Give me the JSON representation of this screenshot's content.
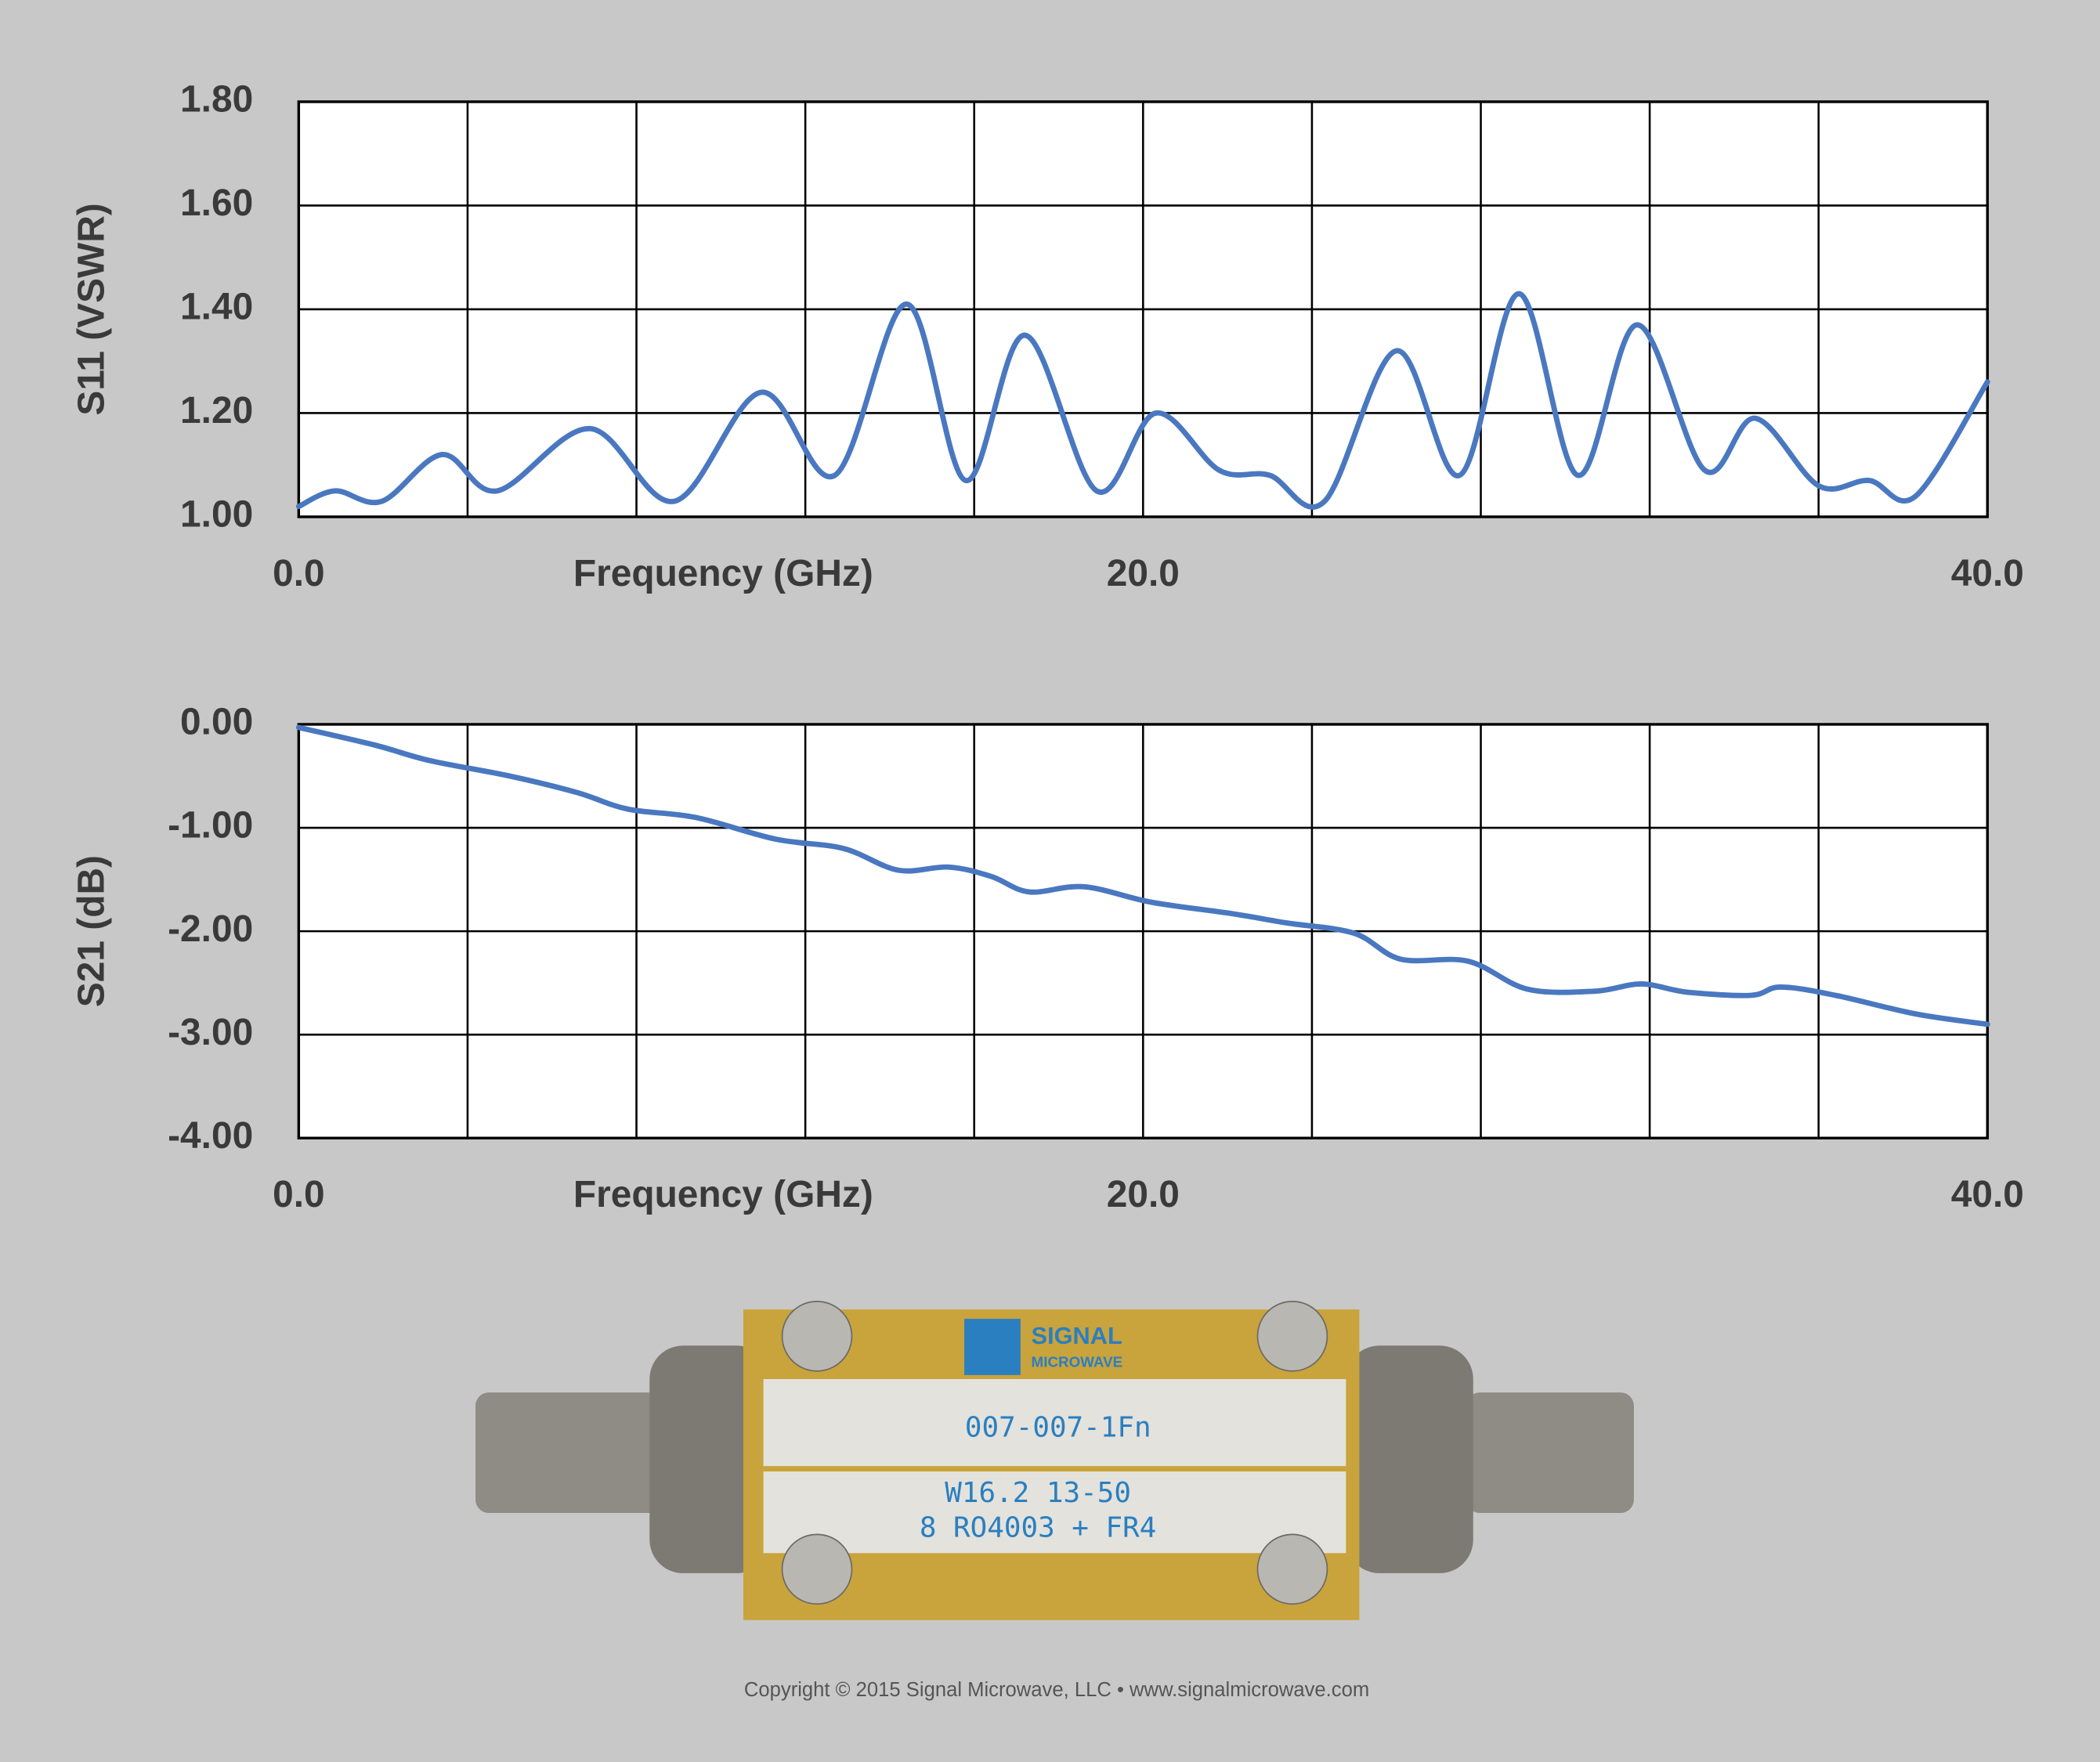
{
  "chart_data": [
    {
      "type": "line",
      "y_label": "S11 (VSWR)",
      "x_label": "Frequency (GHz)",
      "xlim": [
        0,
        40
      ],
      "ylim": [
        1.0,
        1.8
      ],
      "xticks": [
        {
          "value": 0,
          "label": "0.0"
        },
        {
          "value": 20,
          "label": "20.0"
        },
        {
          "value": 40,
          "label": "40.0"
        }
      ],
      "xgrid": [
        0,
        4,
        8,
        12,
        16,
        20,
        24,
        28,
        32,
        36,
        40
      ],
      "yticks": [
        {
          "value": 1.0,
          "label": "1.00"
        },
        {
          "value": 1.2,
          "label": "1.20"
        },
        {
          "value": 1.4,
          "label": "1.40"
        },
        {
          "value": 1.6,
          "label": "1.60"
        },
        {
          "value": 1.8,
          "label": "1.80"
        }
      ],
      "grid": true,
      "series": [
        {
          "color": "#4a78c0",
          "x": [
            0,
            0.86,
            1.97,
            3.4,
            4.7,
            6.9,
            8.9,
            10.95,
            12.7,
            14.4,
            15.8,
            17.2,
            18.9,
            20.3,
            21.8,
            23,
            24.3,
            26,
            27.5,
            28.9,
            30.3,
            31.7,
            33.3,
            34.5,
            36,
            37.2,
            38.3,
            40
          ],
          "values": [
            1.02,
            1.05,
            1.03,
            1.12,
            1.05,
            1.17,
            1.03,
            1.24,
            1.08,
            1.41,
            1.07,
            1.35,
            1.05,
            1.2,
            1.09,
            1.08,
            1.03,
            1.32,
            1.08,
            1.43,
            1.08,
            1.37,
            1.09,
            1.19,
            1.06,
            1.07,
            1.04,
            1.26
          ]
        }
      ]
    },
    {
      "type": "line",
      "y_label": "S21 (dB)",
      "x_label": "Frequency (GHz)",
      "xlim": [
        0,
        40
      ],
      "ylim": [
        -4.0,
        0.0
      ],
      "xticks": [
        {
          "value": 0,
          "label": "0.0"
        },
        {
          "value": 20,
          "label": "20.0"
        },
        {
          "value": 40,
          "label": "40.0"
        }
      ],
      "xgrid": [
        0,
        4,
        8,
        12,
        16,
        20,
        24,
        28,
        32,
        36,
        40
      ],
      "yticks": [
        {
          "value": -4.0,
          "label": "-4.00"
        },
        {
          "value": -3.0,
          "label": "-3.00"
        },
        {
          "value": -2.0,
          "label": "-2.00"
        },
        {
          "value": -1.0,
          "label": "-1.00"
        },
        {
          "value": 0.0,
          "label": "0.00"
        }
      ],
      "grid": true,
      "series": [
        {
          "color": "#4a78c0",
          "x": [
            0,
            1.8,
            3.1,
            5,
            6.6,
            7.8,
            9.4,
            11.3,
            12.9,
            14.2,
            15.4,
            16.4,
            17.3,
            18.6,
            20.2,
            22.1,
            23.4,
            25,
            26.1,
            27.7,
            29.1,
            30.7,
            31.8,
            32.9,
            34.4,
            35.1,
            36.4,
            38.3,
            40
          ],
          "values": [
            -0.03,
            -0.2,
            -0.35,
            -0.5,
            -0.66,
            -0.82,
            -0.9,
            -1.11,
            -1.2,
            -1.41,
            -1.38,
            -1.47,
            -1.62,
            -1.57,
            -1.72,
            -1.83,
            -1.92,
            -2.02,
            -2.27,
            -2.29,
            -2.56,
            -2.58,
            -2.51,
            -2.59,
            -2.62,
            -2.54,
            -2.62,
            -2.8,
            -2.9
          ]
        }
      ]
    }
  ],
  "product": {
    "logo": [
      "SIGNAL",
      "MICROWAVE"
    ],
    "labels": [
      "007-007-1Fn",
      "W16.2 13-50",
      "8 RO4003 + FR4"
    ]
  },
  "copyright": "Copyright © 2015 Signal Microwave, LLC • www.signalmicrowave.com"
}
